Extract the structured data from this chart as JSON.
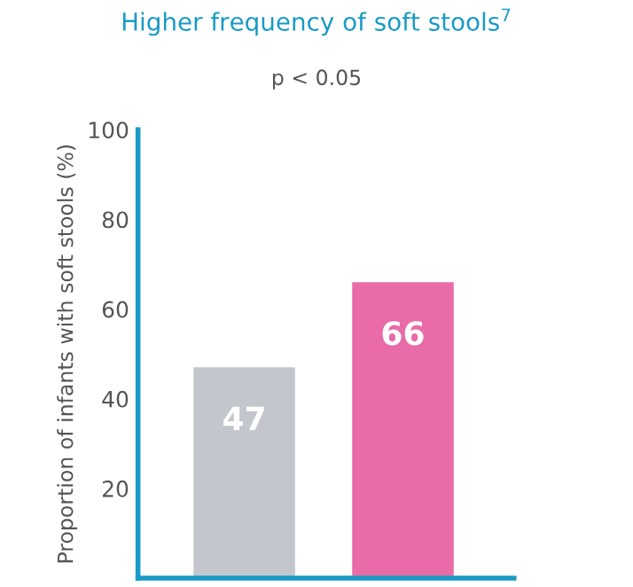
{
  "chart_data": {
    "type": "bar",
    "title": "Higher frequency of soft stools$^{7}$",
    "annotations": [
      "p < 0.05"
    ],
    "ylabel": "Proportion of infants with soft stools (%)",
    "categories": [
      null,
      null
    ],
    "values": [
      47,
      66
    ],
    "colors": [
      "#c4c6cd",
      "#e96ba8"
    ],
    "ylim": [
      0,
      100
    ],
    "yticks": [
      20,
      40,
      60,
      80,
      100
    ],
    "data_labels": true,
    "tick_labels": "y",
    "grid": false,
    "legend": false
  }
}
